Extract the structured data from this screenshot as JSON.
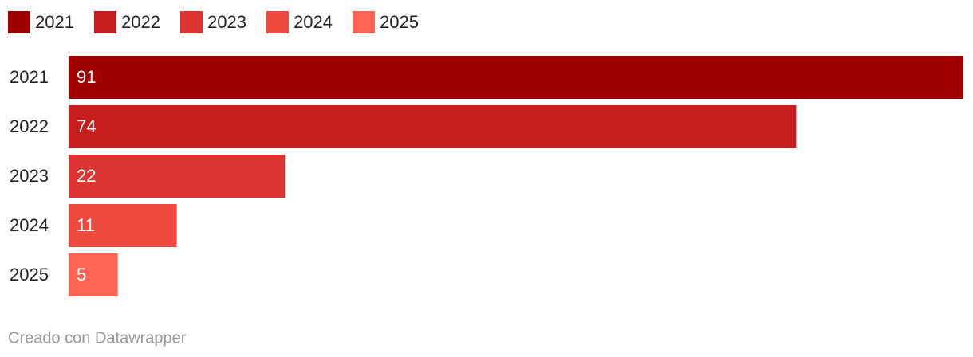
{
  "chart_data": {
    "type": "bar",
    "orientation": "horizontal",
    "categories": [
      "2021",
      "2022",
      "2023",
      "2024",
      "2025"
    ],
    "values": [
      91,
      74,
      22,
      11,
      5
    ],
    "colors": [
      "#a00000",
      "#c71e1d",
      "#dc3430",
      "#ef4a40",
      "#ff6354"
    ],
    "legend": "top-left",
    "footer": "Creado con Datawrapper"
  }
}
